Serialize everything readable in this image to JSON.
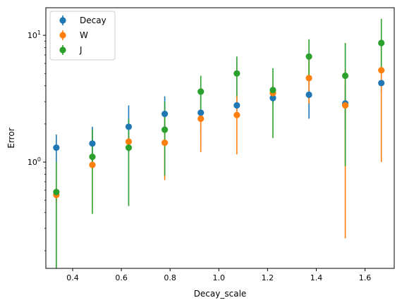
{
  "chart_data": {
    "type": "scatter",
    "title": "",
    "xlabel": "Decay_scale",
    "ylabel": "Error",
    "xscale": "linear",
    "yscale": "log",
    "xlim": [
      0.29,
      1.72
    ],
    "ylim": [
      0.145,
      16.5
    ],
    "xticks": [
      0.4,
      0.6,
      0.8,
      1.0,
      1.2,
      1.4,
      1.6
    ],
    "xtick_labels": [
      "0.4",
      "0.6",
      "0.8",
      "1.0",
      "1.2",
      "1.4",
      "1.6"
    ],
    "yticks_major": [
      1,
      10
    ],
    "ytick_labels": [
      "10^0",
      "10^1"
    ],
    "legend_position": "top-left",
    "grid": false,
    "series": [
      {
        "name": "Decay",
        "color": "#1f77b4",
        "marker": "circle-with-errorbar",
        "x": [
          0.333,
          0.481,
          0.63,
          0.778,
          0.926,
          1.074,
          1.222,
          1.37,
          1.519,
          1.667
        ],
        "y": [
          1.3,
          1.4,
          1.9,
          2.4,
          2.45,
          2.8,
          3.2,
          3.4,
          2.9,
          4.2
        ],
        "y_low": [
          1.0,
          0.95,
          1.2,
          1.7,
          1.7,
          2.3,
          2.9,
          2.2,
          1.8,
          3.5
        ],
        "y_high": [
          1.65,
          1.9,
          2.8,
          3.3,
          3.3,
          3.3,
          3.6,
          4.9,
          4.0,
          4.9
        ]
      },
      {
        "name": "W",
        "color": "#ff7f0e",
        "marker": "circle-with-errorbar",
        "x": [
          0.333,
          0.481,
          0.63,
          0.778,
          0.926,
          1.074,
          1.222,
          1.37,
          1.519,
          1.667
        ],
        "y": [
          0.55,
          0.95,
          1.45,
          1.42,
          2.2,
          2.35,
          3.5,
          4.6,
          2.8,
          5.3
        ],
        "y_low": [
          0.48,
          0.88,
          1.3,
          0.72,
          1.2,
          1.15,
          3.0,
          2.9,
          0.25,
          1.0
        ],
        "y_high": [
          0.62,
          1.02,
          1.6,
          2.3,
          3.3,
          3.5,
          4.0,
          6.8,
          5.4,
          9.2
        ]
      },
      {
        "name": "J",
        "color": "#2ca02c",
        "marker": "circle-with-errorbar",
        "x": [
          0.333,
          0.481,
          0.63,
          0.778,
          0.926,
          1.074,
          1.222,
          1.37,
          1.519,
          1.667
        ],
        "y": [
          0.58,
          1.1,
          1.3,
          1.8,
          3.6,
          5.0,
          3.7,
          6.8,
          4.8,
          8.7
        ],
        "y_low": [
          0.145,
          0.39,
          0.45,
          0.78,
          2.4,
          3.3,
          1.55,
          4.5,
          0.93,
          5.5
        ],
        "y_high": [
          1.0,
          1.8,
          2.2,
          3.0,
          4.8,
          6.8,
          5.5,
          9.3,
          8.7,
          13.5
        ]
      }
    ]
  }
}
